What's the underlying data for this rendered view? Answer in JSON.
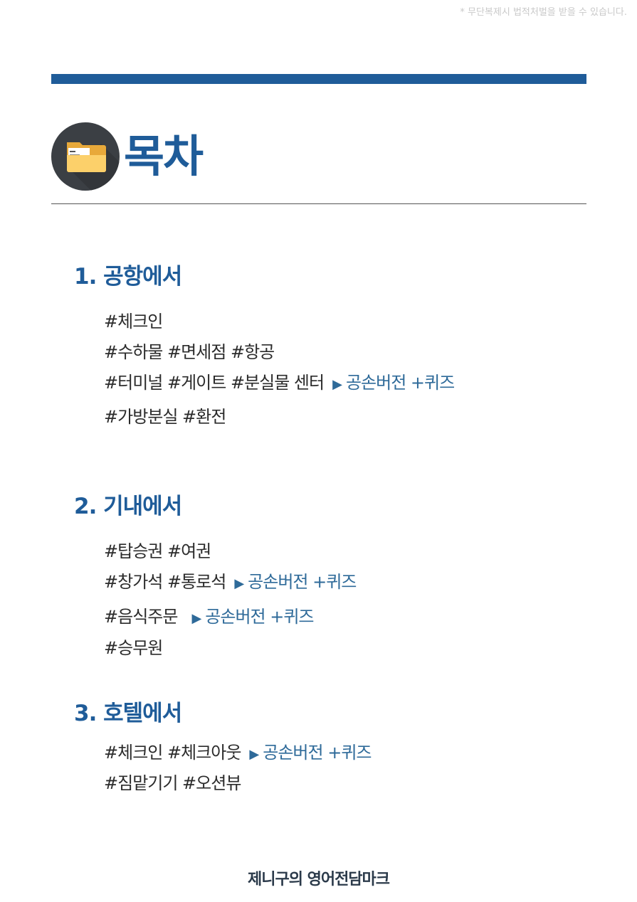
{
  "notice": "* 무단복제시 법적처벌을 받을 수 있습니다.",
  "title": "목차",
  "sections": [
    {
      "heading": "1. 공항에서",
      "lines": [
        {
          "text": "#체크인"
        },
        {
          "text": "#수하물 #면세점 #항공"
        },
        {
          "text": "#터미널 #게이트 #분실물 센터",
          "arrow": "▶",
          "link": "공손버전 +퀴즈"
        },
        {
          "text": "#가방분실 #환전"
        }
      ]
    },
    {
      "heading": "2. 기내에서",
      "lines": [
        {
          "text": "#탑승권 #여권"
        },
        {
          "text": "#창가석 #통로석",
          "arrow": "▶",
          "link": "공손버전 +퀴즈"
        },
        {
          "text": "#음식주문",
          "arrow": "▶",
          "link": "공손버전 +퀴즈"
        },
        {
          "text": "#승무원"
        }
      ]
    },
    {
      "heading": "3. 호텔에서",
      "lines": [
        {
          "text": "#체크인 #체크아웃",
          "arrow": "▶",
          "link": "공손버전 +퀴즈"
        },
        {
          "text": "#짐맡기기 #오션뷰"
        }
      ]
    }
  ],
  "footer": "제니구의 영어전담마크",
  "colors": {
    "accent": "#1f5c99",
    "link": "#2e6a99",
    "badge": "#3b3f44",
    "folder": "#f7c25a"
  },
  "icons": {
    "title_icon": "folder-icon"
  }
}
